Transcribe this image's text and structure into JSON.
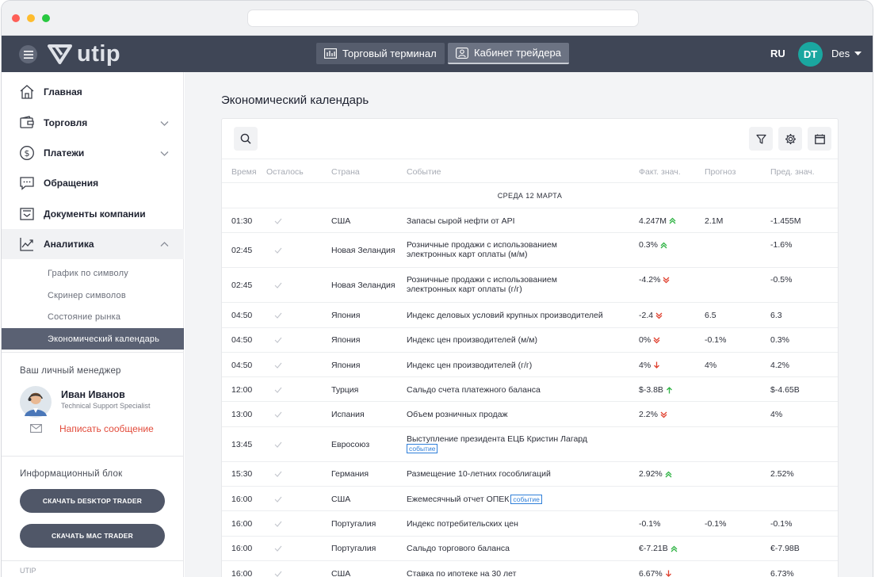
{
  "header": {
    "logo_text": "utip",
    "terminal_button": "Торговый терминал",
    "cabinet_button": "Кабинет трейдера",
    "language": "RU",
    "avatar_initials": "DT",
    "user_name": "Des"
  },
  "sidebar": {
    "items": [
      {
        "label": "Главная",
        "icon": "home-icon"
      },
      {
        "label": "Торговля",
        "icon": "wallet-icon"
      },
      {
        "label": "Платежи",
        "icon": "dollar-icon"
      },
      {
        "label": "Обращения",
        "icon": "chat-icon"
      },
      {
        "label": "Документы компании",
        "icon": "inbox-icon"
      },
      {
        "label": "Аналитика",
        "icon": "chart-line-icon"
      }
    ],
    "analytics_sub": [
      "График по символу",
      "Скринер символов",
      "Состояние рынка",
      "Экономический календарь"
    ],
    "manager": {
      "section_title": "Ваш личный менеджер",
      "name": "Иван Иванов",
      "role": "Technical Support Specialist",
      "message_link": "Написать сообщение"
    },
    "info": {
      "section_title": "Информационный блок",
      "desktop_button": "СКАЧАТЬ DESKTOP TRADER",
      "mac_button": "СКАЧАТЬ MAC TRADER"
    },
    "footer_text": "UTIP"
  },
  "main": {
    "title": "Экономический календарь",
    "columns": [
      "Время",
      "Осталось",
      "Страна",
      "Событие",
      "Факт. знач.",
      "Прогноз",
      "Пред. знач."
    ],
    "day_header": "СРЕДА 12 МАРТА",
    "event_tag": "событие",
    "colors": {
      "up": "#2fb344",
      "down": "#e0412f",
      "tag": "#2f7fd9"
    },
    "rows": [
      {
        "time": "01:30",
        "country": "США",
        "event": [
          "Запасы сырой нефти от API"
        ],
        "fact": "4.247M",
        "trend": "up-double",
        "forecast": "2.1M",
        "prev": "-1.455M"
      },
      {
        "time": "02:45",
        "country": "Новая Зеландия",
        "event": [
          "Розничные продажи с использованием",
          "электронных карт оплаты (м/м)"
        ],
        "fact": "0.3%",
        "trend": "up-double",
        "forecast": "",
        "prev": "-1.6%"
      },
      {
        "time": "02:45",
        "country": "Новая Зеландия",
        "event": [
          "Розничные продажи с использованием",
          "электронных карт оплаты (г/г)"
        ],
        "fact": "-4.2%",
        "trend": "down-double",
        "forecast": "",
        "prev": "-0.5%"
      },
      {
        "time": "04:50",
        "country": "Япония",
        "event": [
          "Индекс деловых условий крупных производителей"
        ],
        "fact": "-2.4",
        "trend": "down-double",
        "forecast": "6.5",
        "prev": "6.3"
      },
      {
        "time": "04:50",
        "country": "Япония",
        "event": [
          "Индекс цен производителей (м/м)"
        ],
        "fact": "0%",
        "trend": "down-double",
        "forecast": "-0.1%",
        "prev": "0.3%"
      },
      {
        "time": "04:50",
        "country": "Япония",
        "event": [
          "Индекс цен производителей (г/г)"
        ],
        "fact": "4%",
        "trend": "down",
        "forecast": "4%",
        "prev": "4.2%"
      },
      {
        "time": "12:00",
        "country": "Турция",
        "event": [
          "Сальдо счета платежного баланса"
        ],
        "fact": "$-3.8B",
        "trend": "up",
        "forecast": "",
        "prev": "$-4.65B"
      },
      {
        "time": "13:00",
        "country": "Испания",
        "event": [
          "Объем розничных продаж"
        ],
        "fact": "2.2%",
        "trend": "down-double",
        "forecast": "",
        "prev": "4%"
      },
      {
        "time": "13:45",
        "country": "Евросоюз",
        "event": [
          "Выступление президента ЕЦБ Кристин Лагард"
        ],
        "tag": true,
        "tag_newline": true,
        "fact": "",
        "trend": "",
        "forecast": "",
        "prev": ""
      },
      {
        "time": "15:30",
        "country": "Германия",
        "event": [
          "Размещение 10-летних гособлигаций"
        ],
        "fact": "2.92%",
        "trend": "up-double",
        "forecast": "",
        "prev": "2.52%"
      },
      {
        "time": "16:00",
        "country": "США",
        "event": [
          "Ежемесячный отчет ОПЕК"
        ],
        "tag": true,
        "tag_newline": false,
        "fact": "",
        "trend": "",
        "forecast": "",
        "prev": ""
      },
      {
        "time": "16:00",
        "country": "Португалия",
        "event": [
          "Индекс потребительских цен"
        ],
        "fact": "-0.1%",
        "trend": "",
        "forecast": "-0.1%",
        "prev": "-0.1%"
      },
      {
        "time": "16:00",
        "country": "Португалия",
        "event": [
          "Сальдо торгового баланса"
        ],
        "fact": "€-7.21B",
        "trend": "up-double",
        "forecast": "",
        "prev": "€-7.98B"
      },
      {
        "time": "16:00",
        "country": "США",
        "event": [
          "Ставка по ипотеке на 30 лет"
        ],
        "fact": "6.67%",
        "trend": "down",
        "forecast": "",
        "prev": "6.73%"
      }
    ]
  }
}
